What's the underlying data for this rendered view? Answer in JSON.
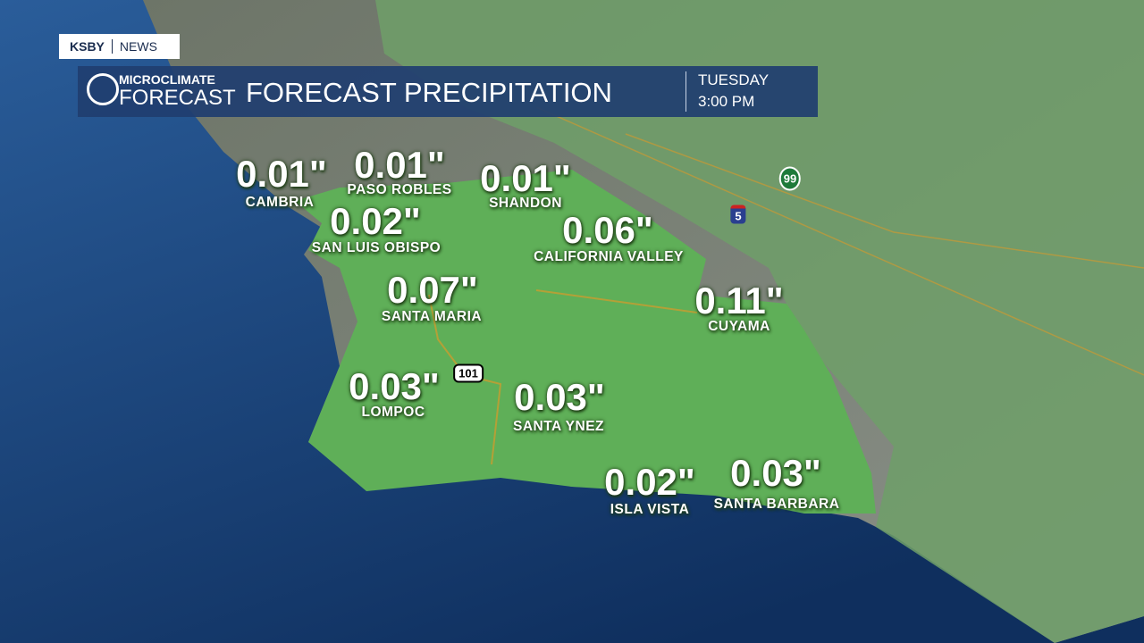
{
  "header": {
    "brand": "KSBY",
    "brand_section": "NEWS",
    "logo_top": "MICROCLIMATE",
    "logo_bottom": "FORECAST",
    "title": "FORECAST PRECIPITATION",
    "day": "TUESDAY",
    "time": "3:00 PM"
  },
  "locations": [
    {
      "name": "CAMBRIA",
      "amount": "0.01\""
    },
    {
      "name": "PASO ROBLES",
      "amount": "0.01\""
    },
    {
      "name": "SHANDON",
      "amount": "0.01\""
    },
    {
      "name": "SAN LUIS OBISPO",
      "amount": "0.02\""
    },
    {
      "name": "CALIFORNIA VALLEY",
      "amount": "0.06\""
    },
    {
      "name": "SANTA MARIA",
      "amount": "0.07\""
    },
    {
      "name": "CUYAMA",
      "amount": "0.11\""
    },
    {
      "name": "LOMPOC",
      "amount": "0.03\""
    },
    {
      "name": "SANTA YNEZ",
      "amount": "0.03\""
    },
    {
      "name": "ISLA VISTA",
      "amount": "0.02\""
    },
    {
      "name": "SANTA BARBARA",
      "amount": "0.03\""
    }
  ],
  "road_shields": [
    "101",
    "5",
    "99"
  ]
}
